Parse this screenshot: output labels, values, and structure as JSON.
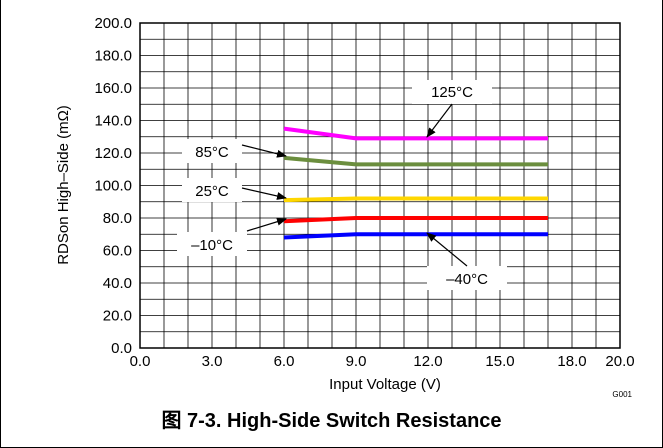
{
  "caption": "图 7-3. High-Side Switch Resistance",
  "chart_data": {
    "type": "line",
    "title": "",
    "xlabel": "Input Voltage (V)",
    "ylabel": "RDSon High–Side (mΩ)",
    "xlim": [
      0,
      20
    ],
    "ylim": [
      0,
      200
    ],
    "x_ticks": [
      "0.0",
      "3.0",
      "6.0",
      "9.0",
      "12.0",
      "15.0",
      "18.0",
      "20.0"
    ],
    "y_ticks": [
      "0.0",
      "20.0",
      "40.0",
      "60.0",
      "80.0",
      "100.0",
      "120.0",
      "140.0",
      "160.0",
      "180.0",
      "200.0"
    ],
    "grid": true,
    "figure_id": "G001",
    "series": [
      {
        "name": "125°C",
        "color": "#ff00ff",
        "x": [
          6,
          9,
          12,
          15,
          17
        ],
        "y": [
          135,
          129,
          129,
          129,
          129
        ]
      },
      {
        "name": "85°C",
        "color": "#6b8e3e",
        "x": [
          6,
          9,
          12,
          15,
          17
        ],
        "y": [
          117,
          113,
          113,
          113,
          113
        ]
      },
      {
        "name": "25°C",
        "color": "#ffd700",
        "x": [
          6,
          9,
          12,
          15,
          17
        ],
        "y": [
          91,
          92,
          92,
          92,
          92
        ]
      },
      {
        "name": "–10°C",
        "color": "#ff0000",
        "x": [
          6,
          9,
          12,
          15,
          17
        ],
        "y": [
          78,
          80,
          80,
          80,
          80
        ]
      },
      {
        "name": "–40°C",
        "color": "#0000ff",
        "x": [
          6,
          9,
          12,
          15,
          17
        ],
        "y": [
          68,
          70,
          70,
          70,
          70
        ]
      }
    ]
  }
}
